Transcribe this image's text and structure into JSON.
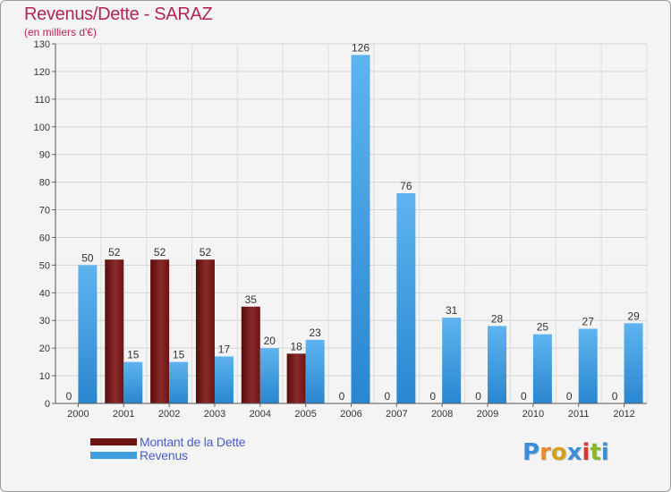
{
  "chart_data": {
    "type": "bar",
    "title": "Revenus/Dette - SARAZ",
    "subtitle": "(en milliers d'€)",
    "categories": [
      "2000",
      "2001",
      "2002",
      "2003",
      "2004",
      "2005",
      "2006",
      "2007",
      "2008",
      "2009",
      "2010",
      "2011",
      "2012"
    ],
    "series": [
      {
        "name": "Montant de la Dette",
        "color": "#7a1a1a",
        "values": [
          0,
          52,
          52,
          52,
          35,
          18,
          0,
          0,
          0,
          0,
          0,
          0,
          0
        ]
      },
      {
        "name": "Revenus",
        "color": "#3d9ee0",
        "values": [
          50,
          15,
          15,
          17,
          20,
          23,
          126,
          76,
          31,
          28,
          25,
          27,
          29
        ]
      }
    ],
    "ylim": [
      0,
      130
    ],
    "yticks": [
      0,
      10,
      20,
      30,
      40,
      50,
      60,
      70,
      80,
      90,
      100,
      110,
      120,
      130
    ],
    "grid": true,
    "legend": "bottom-left"
  },
  "logo": {
    "letters": [
      "P",
      "r",
      "o",
      "x",
      "i",
      "t",
      "i"
    ],
    "colors": [
      "#3a8fd8",
      "#e8892a",
      "#d4a21a",
      "#3a8fd8",
      "#d23a3a",
      "#8ab52c",
      "#3a8fd8"
    ]
  }
}
